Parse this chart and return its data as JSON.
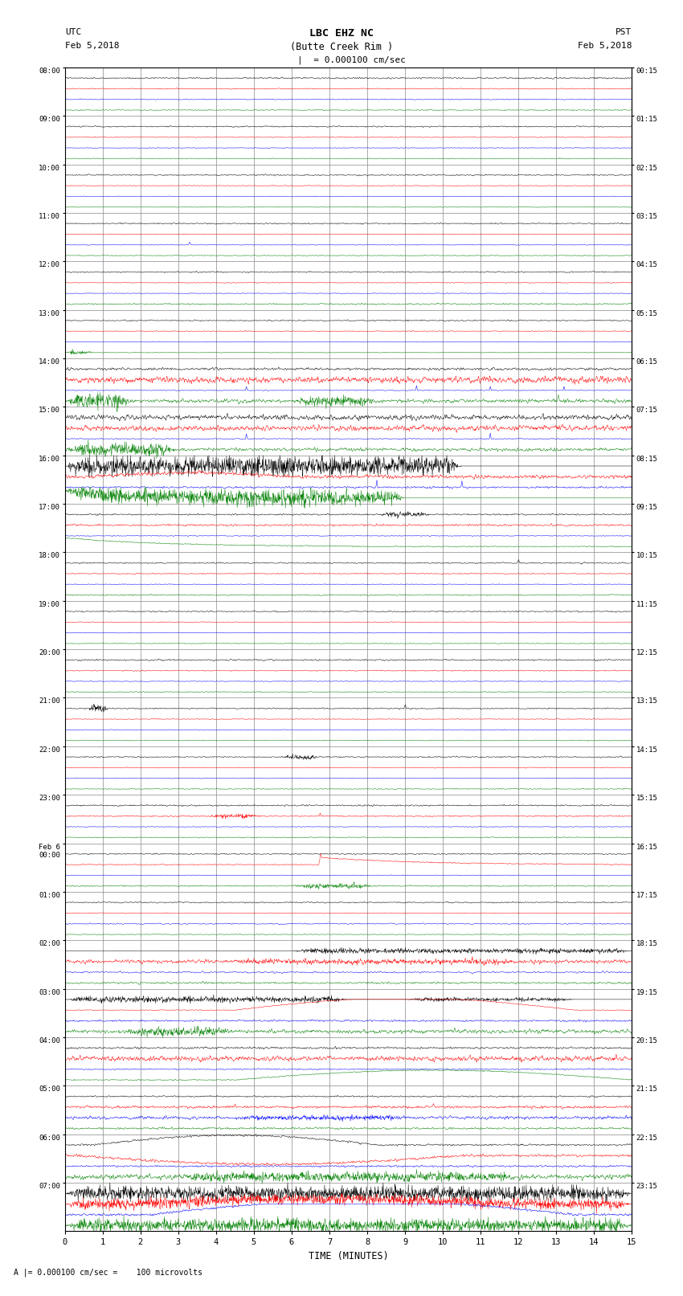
{
  "title_line1": "LBC EHZ NC",
  "title_line2": "(Butte Creek Rim )",
  "scale_text": "= 0.000100 cm/sec",
  "footer_text": "= 0.000100 cm/sec =    100 microvolts",
  "utc_label": "UTC",
  "utc_date": "Feb 5,2018",
  "pst_label": "PST",
  "pst_date": "Feb 5,2018",
  "xlabel": "TIME (MINUTES)",
  "xmin": 0,
  "xmax": 15,
  "xticks": [
    0,
    1,
    2,
    3,
    4,
    5,
    6,
    7,
    8,
    9,
    10,
    11,
    12,
    13,
    14,
    15
  ],
  "bg_color": "#ffffff",
  "grid_color": "#888888",
  "trace_colors": [
    "black",
    "red",
    "blue",
    "green"
  ],
  "num_hours": 24,
  "left_times_utc": [
    "08:00",
    "09:00",
    "10:00",
    "11:00",
    "12:00",
    "13:00",
    "14:00",
    "15:00",
    "16:00",
    "17:00",
    "18:00",
    "19:00",
    "20:00",
    "21:00",
    "22:00",
    "23:00",
    "Feb 6\n00:00",
    "01:00",
    "02:00",
    "03:00",
    "04:00",
    "05:00",
    "06:00",
    "07:00"
  ],
  "right_times_pst": [
    "00:15",
    "01:15",
    "02:15",
    "03:15",
    "04:15",
    "05:15",
    "06:15",
    "07:15",
    "08:15",
    "09:15",
    "10:15",
    "11:15",
    "12:15",
    "13:15",
    "14:15",
    "15:15",
    "16:15",
    "17:15",
    "18:15",
    "19:15",
    "20:15",
    "21:15",
    "22:15",
    "23:15"
  ]
}
